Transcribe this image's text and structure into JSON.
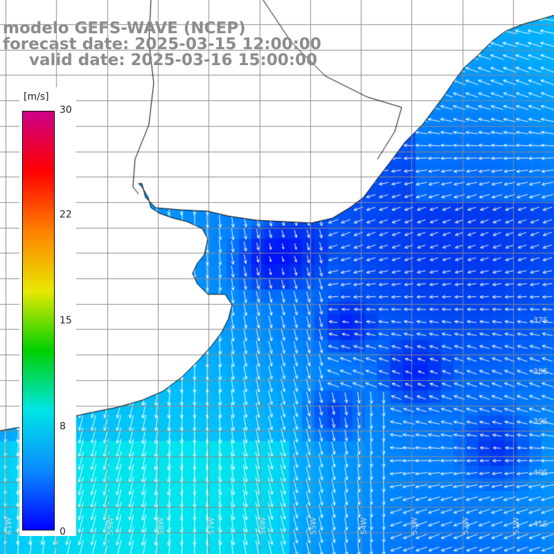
{
  "title": {
    "line1": "modelo GEFS-WAVE (NCEP)",
    "line2": "forecast date: 2025-03-15 12:00:00",
    "line3": "valid date: 2025-03-16 15:00:00"
  },
  "colorbar": {
    "unit": "[m/s]",
    "min": 0,
    "max": 30,
    "ticks": [
      "30",
      "22",
      "15",
      "8",
      "0"
    ],
    "colors": [
      "#0000ff",
      "#0a8cff",
      "#00e5e5",
      "#00d000",
      "#e8e800",
      "#ff8000",
      "#ff0000",
      "#cc0088"
    ]
  },
  "map": {
    "lon_range": [
      -61,
      -50
    ],
    "lat_range": [
      -41,
      -30
    ],
    "lat_labels": [
      "37S",
      "38S",
      "39S",
      "40S",
      "41S"
    ],
    "lon_labels": [
      "61W",
      "60W",
      "59W",
      "58W",
      "57W",
      "56W",
      "55W",
      "54W",
      "53W",
      "52W",
      "51W"
    ],
    "land_color": "#ffffff",
    "grid_color": "#8a8a8a",
    "arrow_color": "#ffffff"
  }
}
